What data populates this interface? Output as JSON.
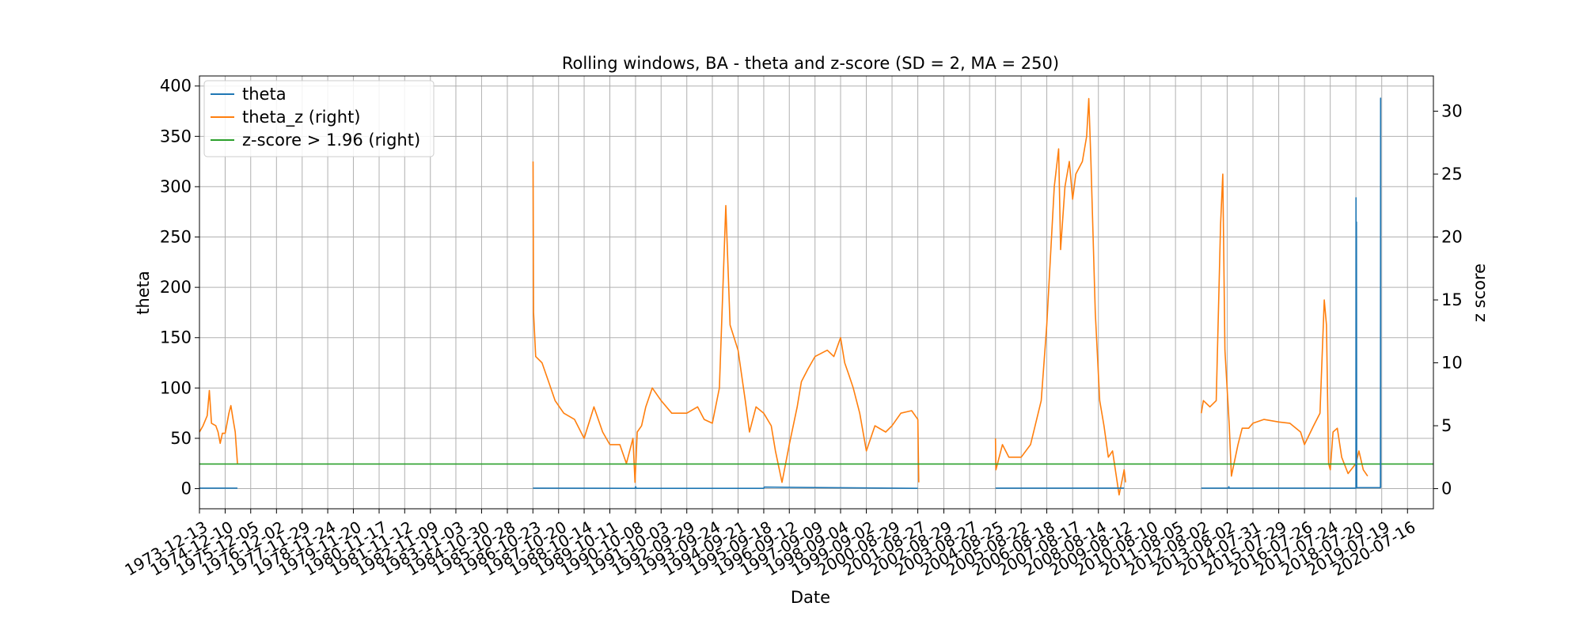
{
  "chart_data": {
    "type": "line",
    "title": "Rolling windows, BA - theta and z-score (SD = 2, MA = 250)",
    "xlabel": "Date",
    "ylabel_left": "theta",
    "ylabel_right": "z score",
    "ylim_left": [
      -20,
      410
    ],
    "ylim_right": [
      -1.6,
      32.8
    ],
    "yticks_left": [
      0,
      50,
      100,
      150,
      200,
      250,
      300,
      350,
      400
    ],
    "yticks_right": [
      0,
      5,
      10,
      15,
      20,
      25,
      30
    ],
    "xlim": [
      "1973-12-13",
      "2021-07-16"
    ],
    "xticks": [
      "1973-12-13",
      "1974-12-10",
      "1975-12-05",
      "1976-12-02",
      "1977-11-29",
      "1978-11-24",
      "1979-11-20",
      "1980-11-17",
      "1981-11-12",
      "1982-11-09",
      "1983-11-03",
      "1984-10-30",
      "1985-10-28",
      "1986-10-23",
      "1987-10-20",
      "1988-10-14",
      "1989-10-11",
      "1990-10-08",
      "1991-10-03",
      "1992-09-29",
      "1993-09-24",
      "1994-09-21",
      "1995-09-18",
      "1996-09-12",
      "1997-09-09",
      "1998-09-04",
      "1999-09-02",
      "2000-08-29",
      "2001-08-27",
      "2002-08-29",
      "2003-08-27",
      "2004-08-25",
      "2005-08-22",
      "2006-08-18",
      "2007-08-17",
      "2008-08-14",
      "2009-08-12",
      "2010-08-10",
      "2011-08-05",
      "2012-08-02",
      "2013-08-02",
      "2014-07-31",
      "2015-07-29",
      "2016-07-26",
      "2017-07-24",
      "2018-07-20",
      "2019-07-19",
      "2020-07-16"
    ],
    "grid": true,
    "legend_position": "top-left",
    "threshold": 1.96,
    "series": [
      {
        "name": "theta",
        "axis": "left",
        "color": "#1f77b4",
        "segments": [
          [
            [
              "1973-12-13",
              0.5
            ],
            [
              "1975-06-01",
              0.5
            ]
          ],
          [
            [
              "1986-10-23",
              0.5
            ],
            [
              "1990-10-01",
              0.3
            ],
            [
              "1990-10-10",
              2
            ],
            [
              "1990-10-20",
              0.3
            ],
            [
              "1995-09-18",
              0.3
            ],
            [
              "1995-09-25",
              1.5
            ],
            [
              "2001-08-27",
              0.3
            ]
          ],
          [
            [
              "2004-08-25",
              0.5
            ],
            [
              "2009-08-12",
              0.5
            ]
          ],
          [
            [
              "2012-08-02",
              0.5
            ],
            [
              "2013-08-20",
              0.5
            ],
            [
              "2013-08-25",
              2
            ],
            [
              "2013-09-01",
              0.5
            ],
            [
              "2018-07-20",
              0.5
            ],
            [
              "2018-07-22",
              289
            ],
            [
              "2018-07-24",
              1
            ],
            [
              "2018-07-28",
              265
            ],
            [
              "2018-08-01",
              1
            ],
            [
              "2019-07-01",
              1
            ],
            [
              "2019-07-03",
              388
            ],
            [
              "2019-07-05",
              1
            ]
          ]
        ]
      },
      {
        "name": "theta_z (right)",
        "axis": "right",
        "color": "#ff7f0e",
        "segments": [
          [
            [
              "1973-12-13",
              4.5
            ],
            [
              "1974-02-01",
              5.0
            ],
            [
              "1974-04-01",
              5.8
            ],
            [
              "1974-05-01",
              7.8
            ],
            [
              "1974-06-01",
              5.2
            ],
            [
              "1974-08-01",
              5.0
            ],
            [
              "1974-09-01",
              4.5
            ],
            [
              "1974-10-01",
              3.6
            ],
            [
              "1974-11-01",
              4.4
            ],
            [
              "1974-12-10",
              4.4
            ],
            [
              "1975-02-01",
              6.0
            ],
            [
              "1975-03-01",
              6.6
            ],
            [
              "1975-04-01",
              5.5
            ],
            [
              "1975-05-01",
              4.5
            ],
            [
              "1975-06-01",
              2.0
            ]
          ],
          [
            [
              "1986-10-25",
              26
            ],
            [
              "1986-11-01",
              14
            ],
            [
              "1986-12-01",
              10.5
            ],
            [
              "1987-03-01",
              10.0
            ],
            [
              "1987-06-01",
              8.5
            ],
            [
              "1987-09-01",
              7.0
            ],
            [
              "1988-01-01",
              6.0
            ],
            [
              "1988-06-01",
              5.5
            ],
            [
              "1988-10-14",
              4.0
            ],
            [
              "1989-03-01",
              6.5
            ],
            [
              "1989-07-01",
              4.5
            ],
            [
              "1989-10-11",
              3.5
            ],
            [
              "1990-03-01",
              3.5
            ],
            [
              "1990-06-01",
              2.0
            ],
            [
              "1990-09-01",
              4.0
            ],
            [
              "1990-10-01",
              0.5
            ],
            [
              "1990-11-01",
              4.5
            ],
            [
              "1991-01-01",
              5.0
            ],
            [
              "1991-03-01",
              6.5
            ],
            [
              "1991-06-01",
              8.0
            ],
            [
              "1991-10-03",
              7.0
            ],
            [
              "1992-03-01",
              6.0
            ],
            [
              "1992-09-29",
              6.0
            ],
            [
              "1993-03-01",
              6.5
            ],
            [
              "1993-06-01",
              5.5
            ],
            [
              "1993-09-24",
              5.2
            ],
            [
              "1994-01-01",
              8.0
            ],
            [
              "1994-04-01",
              22.5
            ],
            [
              "1994-06-01",
              13.0
            ],
            [
              "1994-09-21",
              11.0
            ],
            [
              "1995-01-01",
              7.0
            ],
            [
              "1995-03-01",
              4.5
            ],
            [
              "1995-06-01",
              6.5
            ],
            [
              "1995-09-18",
              6.0
            ],
            [
              "1996-01-01",
              5.0
            ],
            [
              "1996-03-01",
              3.0
            ],
            [
              "1996-06-01",
              0.5
            ],
            [
              "1996-09-12",
              3.5
            ],
            [
              "1997-01-01",
              6.5
            ],
            [
              "1997-03-01",
              8.5
            ],
            [
              "1997-06-01",
              9.5
            ],
            [
              "1997-09-09",
              10.5
            ],
            [
              "1998-03-01",
              11.0
            ],
            [
              "1998-06-01",
              10.5
            ],
            [
              "1998-09-04",
              12.0
            ],
            [
              "1998-11-01",
              10.0
            ],
            [
              "1999-01-01",
              9.0
            ],
            [
              "1999-03-01",
              8.0
            ],
            [
              "1999-06-01",
              6.0
            ],
            [
              "1999-09-02",
              3.0
            ],
            [
              "2000-01-01",
              5.0
            ],
            [
              "2000-06-01",
              4.5
            ],
            [
              "2000-08-29",
              5.0
            ],
            [
              "2001-01-01",
              6.0
            ],
            [
              "2001-06-01",
              6.2
            ],
            [
              "2001-08-27",
              5.5
            ],
            [
              "2001-09-10",
              0.5
            ]
          ],
          [
            [
              "2004-08-25",
              4.0
            ],
            [
              "2004-09-01",
              1.5
            ],
            [
              "2004-12-01",
              3.5
            ],
            [
              "2005-03-01",
              2.5
            ],
            [
              "2005-08-22",
              2.5
            ],
            [
              "2006-01-01",
              3.5
            ],
            [
              "2006-06-01",
              7.0
            ],
            [
              "2006-08-18",
              13.0
            ],
            [
              "2006-12-01",
              24.0
            ],
            [
              "2007-02-01",
              27.0
            ],
            [
              "2007-03-01",
              19.0
            ],
            [
              "2007-05-01",
              24.0
            ],
            [
              "2007-07-01",
              26.0
            ],
            [
              "2007-08-17",
              23.0
            ],
            [
              "2007-10-01",
              25.0
            ],
            [
              "2008-01-01",
              26.0
            ],
            [
              "2008-03-01",
              28.0
            ],
            [
              "2008-04-01",
              31.0
            ],
            [
              "2008-05-01",
              26.0
            ],
            [
              "2008-07-01",
              14.0
            ],
            [
              "2008-09-01",
              7.0
            ],
            [
              "2008-11-01",
              5.0
            ],
            [
              "2009-01-01",
              2.5
            ],
            [
              "2009-03-01",
              3.0
            ],
            [
              "2009-06-01",
              -0.5
            ],
            [
              "2009-08-12",
              1.5
            ],
            [
              "2009-09-01",
              0.5
            ]
          ],
          [
            [
              "2012-08-02",
              6.0
            ],
            [
              "2012-09-01",
              7.0
            ],
            [
              "2012-12-01",
              6.5
            ],
            [
              "2013-03-01",
              7.0
            ],
            [
              "2013-05-01",
              21.0
            ],
            [
              "2013-06-01",
              25.0
            ],
            [
              "2013-07-01",
              11.0
            ],
            [
              "2013-09-01",
              5.0
            ],
            [
              "2013-10-01",
              1.0
            ],
            [
              "2014-01-01",
              3.5
            ],
            [
              "2014-03-01",
              4.8
            ],
            [
              "2014-06-01",
              4.8
            ],
            [
              "2014-07-31",
              5.2
            ],
            [
              "2015-01-01",
              5.5
            ],
            [
              "2015-07-29",
              5.3
            ],
            [
              "2016-01-01",
              5.2
            ],
            [
              "2016-06-01",
              4.5
            ],
            [
              "2016-07-26",
              3.5
            ],
            [
              "2016-12-01",
              5.0
            ],
            [
              "2017-03-01",
              6.0
            ],
            [
              "2017-05-01",
              15.0
            ],
            [
              "2017-06-01",
              13.0
            ],
            [
              "2017-07-01",
              2.0
            ],
            [
              "2017-07-24",
              1.5
            ],
            [
              "2017-09-01",
              4.5
            ],
            [
              "2017-11-01",
              4.8
            ],
            [
              "2018-01-01",
              2.5
            ],
            [
              "2018-04-01",
              1.2
            ],
            [
              "2018-07-20",
              2.0
            ],
            [
              "2018-09-01",
              3.0
            ],
            [
              "2018-11-01",
              1.5
            ],
            [
              "2019-01-01",
              1.0
            ]
          ]
        ]
      },
      {
        "name": "z-score > 1.96 (right)",
        "axis": "right",
        "color": "#2ca02c",
        "segments": [
          [
            [
              "1973-12-13",
              1.96
            ],
            [
              "2021-07-16",
              1.96
            ]
          ]
        ]
      }
    ]
  }
}
